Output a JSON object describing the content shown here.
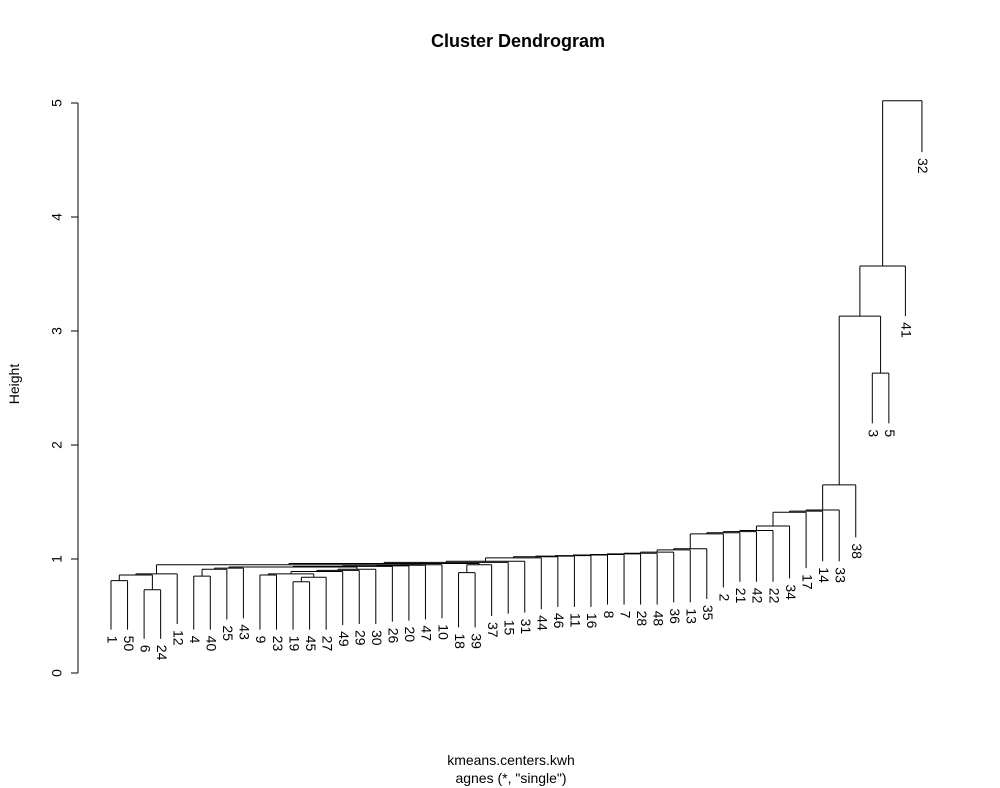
{
  "chart_data": {
    "type": "dendrogram",
    "title": "Cluster Dendrogram",
    "ylabel": "Height",
    "xlabel": "kmeans.centers.kwh",
    "sublabel": "agnes (*, \"single\")",
    "ylim": [
      0,
      5
    ],
    "yticks": [
      "0",
      "1",
      "2",
      "3",
      "4",
      "5"
    ],
    "leaf_order": [
      "1",
      "50",
      "6",
      "24",
      "12",
      "4",
      "40",
      "25",
      "43",
      "9",
      "23",
      "19",
      "45",
      "27",
      "49",
      "29",
      "30",
      "26",
      "20",
      "47",
      "10",
      "18",
      "39",
      "37",
      "15",
      "31",
      "44",
      "46",
      "11",
      "16",
      "8",
      "7",
      "28",
      "48",
      "36",
      "13",
      "35",
      "2",
      "21",
      "42",
      "22",
      "34",
      "17",
      "14",
      "33",
      "38",
      "3",
      "5",
      "41",
      "32"
    ],
    "merges": [
      {
        "a": "1",
        "b": "50",
        "height": 0.81
      },
      {
        "a": "6",
        "b": "24",
        "height": 0.73
      },
      {
        "a": "{1,50}",
        "b": "{6,24}",
        "height": 0.86
      },
      {
        "a": "{1,50,6,24}",
        "b": "12",
        "height": 0.87
      },
      {
        "a": "4",
        "b": "40",
        "height": 0.85
      },
      {
        "a": "{4,40}",
        "b": "25",
        "height": 0.91
      },
      {
        "a": "{4,40,25}",
        "b": "43",
        "height": 0.92
      },
      {
        "a": "19",
        "b": "45",
        "height": 0.8
      },
      {
        "a": "{19,45}",
        "b": "27",
        "height": 0.84
      },
      {
        "a": "9",
        "b": "23",
        "height": 0.86
      },
      {
        "a": "{9,23}",
        "b": "{19,45,27}",
        "height": 0.87
      },
      {
        "a": "{9,23,19,45,27}",
        "b": "49",
        "height": 0.89
      },
      {
        "a": "{9,...,49}",
        "b": "29",
        "height": 0.9
      },
      {
        "a": "{9,...,29}",
        "b": "30",
        "height": 0.91
      },
      {
        "a": "{4,40,25,43}",
        "b": "{9,...,30}",
        "height": 0.93
      },
      {
        "a": "{4,...,30}",
        "b": "26",
        "height": 0.935
      },
      {
        "a": "{4,...,26}",
        "b": "20",
        "height": 0.94
      },
      {
        "a": "{4,...,20}",
        "b": "47",
        "height": 0.945
      },
      {
        "a": "{4,...,47}",
        "b": "10",
        "height": 0.95
      },
      {
        "a": "{1,50,6,24,12}",
        "b": "{4,...,10}",
        "height": 0.95
      },
      {
        "a": "18",
        "b": "39",
        "height": 0.88
      },
      {
        "a": "{18,39}",
        "b": "37",
        "height": 0.95
      },
      {
        "a": "{1,...,10}",
        "b": "{18,39,37}",
        "height": 0.96
      },
      {
        "a": "{1,...,37}",
        "b": "15",
        "height": 0.97
      },
      {
        "a": "{1,...,15}",
        "b": "31",
        "height": 0.98
      },
      {
        "a": "{1,...,31}",
        "b": "44",
        "height": 1.01
      },
      {
        "a": "{1,...,44}",
        "b": "46",
        "height": 1.02
      },
      {
        "a": "{1,...,46}",
        "b": "11",
        "height": 1.025
      },
      {
        "a": "{1,...,11}",
        "b": "16",
        "height": 1.03
      },
      {
        "a": "{1,...,16}",
        "b": "8",
        "height": 1.035
      },
      {
        "a": "{1,...,8}",
        "b": "7",
        "height": 1.04
      },
      {
        "a": "{1,...,7}",
        "b": "28",
        "height": 1.045
      },
      {
        "a": "{1,...,28}",
        "b": "48",
        "height": 1.05
      },
      {
        "a": "{1,...,48}",
        "b": "36",
        "height": 1.06
      },
      {
        "a": "{1,...,36}",
        "b": "13",
        "height": 1.08
      },
      {
        "a": "{1,...,13}",
        "b": "35",
        "height": 1.09
      },
      {
        "a": "{1,...,35}",
        "b": "2",
        "height": 1.22
      },
      {
        "a": "{1,...,2}",
        "b": "21",
        "height": 1.23
      },
      {
        "a": "{1,...,21}",
        "b": "42",
        "height": 1.24
      },
      {
        "a": "{1,...,42}",
        "b": "22",
        "height": 1.25
      },
      {
        "a": "{1,...,22}",
        "b": "34",
        "height": 1.29
      },
      {
        "a": "{1,...,34}",
        "b": "17",
        "height": 1.41
      },
      {
        "a": "{1,...,17}",
        "b": "14",
        "height": 1.42
      },
      {
        "a": "{1,...,14}",
        "b": "33",
        "height": 1.43
      },
      {
        "a": "{1,...,33}",
        "b": "38",
        "height": 1.65
      },
      {
        "a": "3",
        "b": "5",
        "height": 2.63
      },
      {
        "a": "{1,...,38}",
        "b": "{3,5}",
        "height": 3.13
      },
      {
        "a": "{1,...,5}",
        "b": "41",
        "height": 3.57
      },
      {
        "a": "{1,...,41}",
        "b": "32",
        "height": 5.02
      }
    ],
    "leaf_heights": {
      "1": 0.38,
      "50": 0.38,
      "6": 0.3,
      "24": 0.3,
      "12": 0.43,
      "4": 0.38,
      "40": 0.38,
      "25": 0.47,
      "43": 0.48,
      "9": 0.38,
      "23": 0.38,
      "19": 0.38,
      "45": 0.38,
      "27": 0.38,
      "49": 0.42,
      "29": 0.43,
      "30": 0.43,
      "26": 0.45,
      "20": 0.46,
      "47": 0.47,
      "10": 0.48,
      "18": 0.4,
      "39": 0.4,
      "37": 0.5,
      "15": 0.52,
      "31": 0.53,
      "44": 0.56,
      "46": 0.58,
      "11": 0.58,
      "16": 0.58,
      "8": 0.6,
      "7": 0.6,
      "28": 0.6,
      "48": 0.6,
      "36": 0.62,
      "13": 0.62,
      "35": 0.65,
      "2": 0.75,
      "21": 0.8,
      "42": 0.8,
      "22": 0.8,
      "34": 0.83,
      "17": 0.92,
      "14": 0.98,
      "33": 0.98,
      "38": 1.19,
      "3": 2.19,
      "5": 2.19,
      "41": 3.13,
      "32": 4.57
    }
  }
}
